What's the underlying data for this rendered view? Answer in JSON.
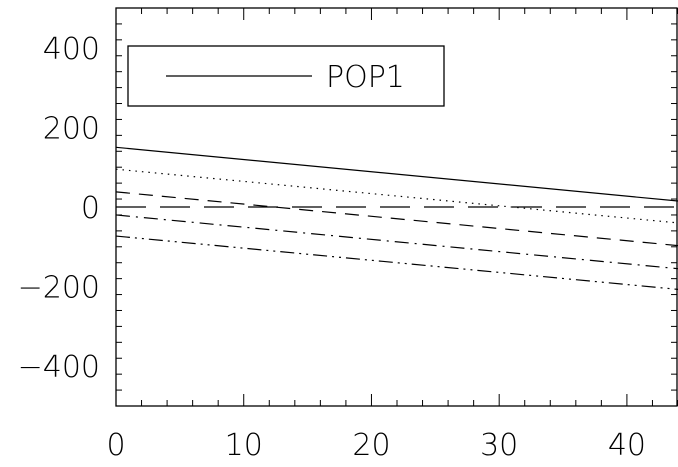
{
  "chart_data": {
    "type": "line",
    "title": "",
    "xlabel": "",
    "ylabel": "",
    "xlim": [
      0,
      44
    ],
    "ylim": [
      -500,
      500
    ],
    "x_ticks": [
      0,
      10,
      20,
      30,
      40
    ],
    "x_tick_labels": [
      "0",
      "10",
      "20",
      "30",
      "40"
    ],
    "y_ticks": [
      -400,
      -200,
      0,
      200,
      400
    ],
    "y_tick_labels": [
      "−400",
      "−200",
      "0",
      "200",
      "400"
    ],
    "grid": false,
    "legend": {
      "placement": "top-left",
      "entries": [
        "POP1"
      ]
    },
    "series": [
      {
        "name": "POP1",
        "style": "solid",
        "x": [
          0,
          44
        ],
        "y": [
          150,
          15
        ]
      },
      {
        "style": "dotted",
        "x": [
          0,
          44
        ],
        "y": [
          95,
          -40
        ]
      },
      {
        "style": "dashed",
        "x": [
          0,
          44
        ],
        "y": [
          38,
          -97
        ]
      },
      {
        "style": "long-dash",
        "x": [
          0,
          44
        ],
        "y": [
          0,
          0
        ]
      },
      {
        "style": "dash-dot",
        "x": [
          0,
          44
        ],
        "y": [
          -20,
          -155
        ]
      },
      {
        "style": "dash-dot-dot",
        "x": [
          0,
          44
        ],
        "y": [
          -73,
          -207
        ]
      }
    ]
  }
}
